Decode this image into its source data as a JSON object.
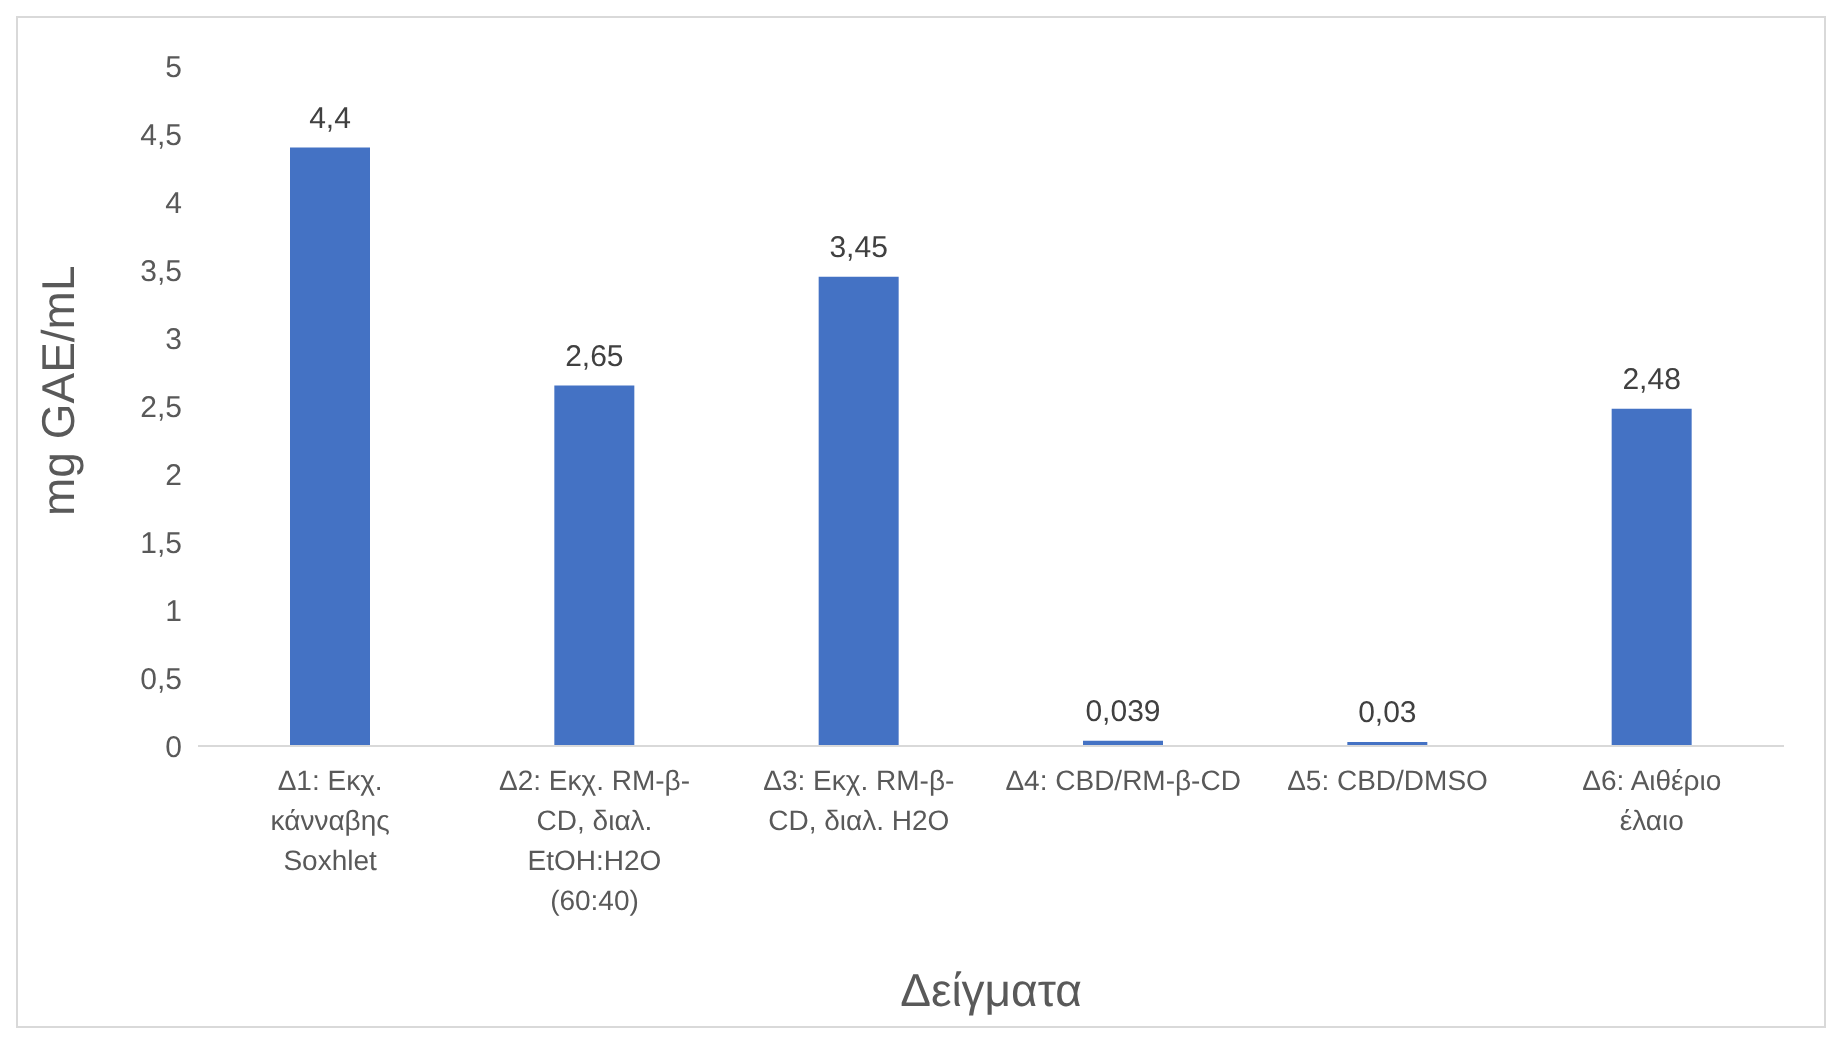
{
  "chart_data": {
    "type": "bar",
    "xlabel": "Δείγματα",
    "ylabel": "mg GAE/mL",
    "categories": [
      "Δ1: Εκχ. κάνναβης Soxhlet",
      "Δ2: Εκχ. RM-β-CD, διαλ. EtOH:H2O (60:40)",
      "Δ3: Εκχ. RM-β-CD, διαλ. H2O",
      "Δ4: CBD/RM-β-CD",
      "Δ5: CBD/DMSO",
      "Δ6: Αιθέριο έλαιο"
    ],
    "values": [
      4.4,
      2.65,
      3.45,
      0.039,
      0.03,
      2.48
    ],
    "color": "#4472c4",
    "ylim": [
      0,
      5
    ],
    "yticks": [
      {
        "value": 0,
        "label": "0"
      },
      {
        "value": 0.5,
        "label": "0,5"
      },
      {
        "value": 1,
        "label": "1"
      },
      {
        "value": 1.5,
        "label": "1,5"
      },
      {
        "value": 2,
        "label": "2"
      },
      {
        "value": 2.5,
        "label": "2,5"
      },
      {
        "value": 3,
        "label": "3"
      },
      {
        "value": 3.5,
        "label": "3,5"
      },
      {
        "value": 4,
        "label": "4"
      },
      {
        "value": 4.5,
        "label": "4,5"
      },
      {
        "value": 5,
        "label": "5"
      }
    ],
    "value_labels": [
      "4,4",
      "2,65",
      "3,45",
      "0,039",
      "0,03",
      "2,48"
    ],
    "grid": false,
    "legend": false
  }
}
